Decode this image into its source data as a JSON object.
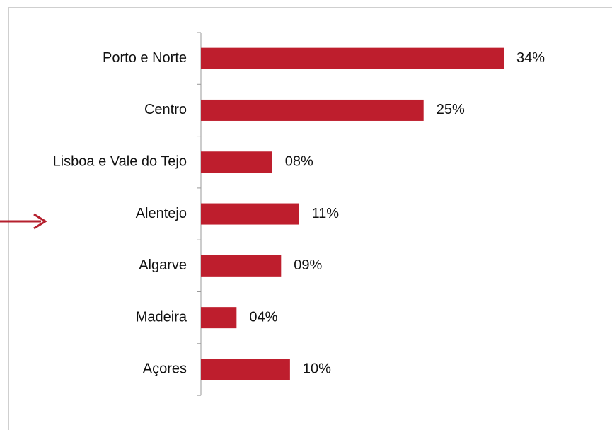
{
  "chart_data": {
    "type": "bar",
    "orientation": "horizontal",
    "categories": [
      "Porto e Norte",
      "Centro",
      "Lisboa e Vale do Tejo",
      "Alentejo",
      "Algarve",
      "Madeira",
      "Açores"
    ],
    "values": [
      34,
      25,
      8,
      11,
      9,
      4,
      10
    ],
    "value_labels": [
      "34%",
      "25%",
      "08%",
      "11%",
      "09%",
      "04%",
      "10%"
    ],
    "color": "#be1e2d"
  }
}
